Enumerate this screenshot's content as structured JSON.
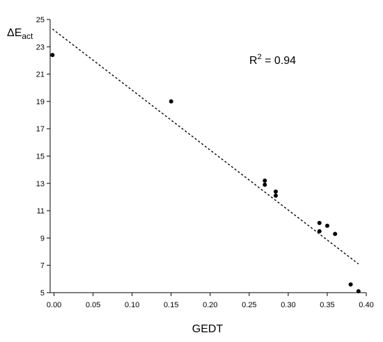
{
  "chart_data": {
    "type": "scatter",
    "title": "",
    "xlabel": "GEDT",
    "ylabel": {
      "main": "ΔE",
      "sub": "act"
    },
    "xlim": [
      -0.005,
      0.4
    ],
    "ylim": [
      5,
      25
    ],
    "xticks": [
      0.0,
      0.05,
      0.1,
      0.15,
      0.2,
      0.25,
      0.3,
      0.35,
      0.4
    ],
    "xtick_labels": [
      "0.00",
      "0.05",
      "0.10",
      "0.15",
      "0.20",
      "0.25",
      "0.30",
      "0.35",
      "0.40"
    ],
    "yticks": [
      5,
      7,
      9,
      11,
      13,
      15,
      17,
      19,
      21,
      23,
      25
    ],
    "ytick_labels": [
      "5",
      "7",
      "9",
      "11",
      "13",
      "15",
      "17",
      "19",
      "21",
      "23",
      "25"
    ],
    "grid": false,
    "points": [
      {
        "x": -0.002,
        "y": 22.4
      },
      {
        "x": 0.15,
        "y": 19.0
      },
      {
        "x": 0.27,
        "y": 13.2
      },
      {
        "x": 0.27,
        "y": 12.9
      },
      {
        "x": 0.284,
        "y": 12.4
      },
      {
        "x": 0.284,
        "y": 12.1
      },
      {
        "x": 0.34,
        "y": 10.1
      },
      {
        "x": 0.35,
        "y": 9.9
      },
      {
        "x": 0.34,
        "y": 9.5
      },
      {
        "x": 0.36,
        "y": 9.3
      },
      {
        "x": 0.38,
        "y": 5.6
      },
      {
        "x": 0.39,
        "y": 5.1
      }
    ],
    "fit_line": {
      "style": "dashed",
      "x": [
        -0.002,
        0.39
      ],
      "y": [
        24.3,
        7.1
      ]
    },
    "annotation": {
      "base": "R",
      "sup": "2",
      "rest": " = 0.94"
    }
  }
}
